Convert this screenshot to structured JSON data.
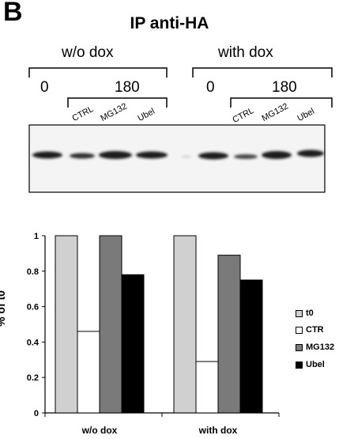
{
  "panel_label": "B",
  "title": "IP anti-HA",
  "blot": {
    "conditions": [
      "w/o dox",
      "with dox"
    ],
    "time_labels": [
      "0",
      "180",
      "0",
      "180"
    ],
    "lane_labels": [
      "CTRL",
      "MG132",
      "Ubel",
      "CTRL",
      "MG132",
      "Ubel"
    ]
  },
  "chart_data": {
    "type": "bar",
    "categories": [
      "w/o dox",
      "with dox"
    ],
    "ylabel": "% of t0",
    "ylim": [
      0,
      1
    ],
    "yticks": [
      "0",
      "0.2",
      "0.4",
      "0.6",
      "0.8",
      "1"
    ],
    "legend_position": "right",
    "series": [
      {
        "name": "t0",
        "values": [
          1.0,
          1.0
        ],
        "color": "#d0d0d0"
      },
      {
        "name": "CTR",
        "values": [
          0.46,
          0.29
        ],
        "color": "#ffffff"
      },
      {
        "name": "MG132",
        "values": [
          1.0,
          0.89
        ],
        "color": "#7a7a7a"
      },
      {
        "name": "Ubel",
        "values": [
          0.78,
          0.75
        ],
        "color": "#000000"
      }
    ]
  }
}
